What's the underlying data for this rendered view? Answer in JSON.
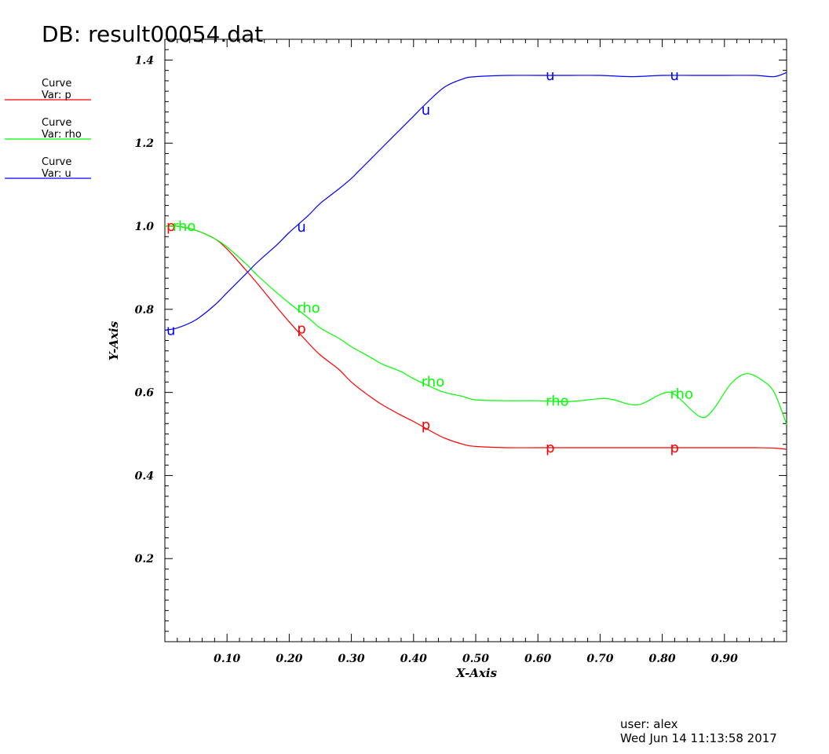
{
  "header": {
    "db_title": "DB: result00054.dat"
  },
  "footer": {
    "user": "user: alex",
    "timestamp": "Wed Jun 14 11:13:58 2017"
  },
  "legend": [
    {
      "line1": "Curve",
      "line2": "Var: p",
      "color": "#ff0000"
    },
    {
      "line1": "Curve",
      "line2": "Var: rho",
      "color": "#00ff00"
    },
    {
      "line1": "Curve",
      "line2": "Var: u",
      "color": "#0000ff"
    }
  ],
  "chart_data": {
    "type": "line",
    "title": "",
    "xlabel": "X-Axis",
    "ylabel": "Y-Axis",
    "xlim": [
      0.0,
      1.0
    ],
    "ylim": [
      0.0,
      1.45
    ],
    "x_ticks": [
      0.1,
      0.2,
      0.3,
      0.4,
      0.5,
      0.6,
      0.7,
      0.8,
      0.9
    ],
    "x_tick_labels": [
      "0.10",
      "0.20",
      "0.30",
      "0.40",
      "0.50",
      "0.60",
      "0.70",
      "0.80",
      "0.90"
    ],
    "y_ticks": [
      0.2,
      0.4,
      0.6,
      0.8,
      1.0,
      1.2,
      1.4
    ],
    "y_tick_labels": [
      "0.2",
      "0.4",
      "0.6",
      "0.8",
      "1.0",
      "1.2",
      "1.4"
    ],
    "grid": false,
    "legend_position": "top-left outside",
    "series": [
      {
        "name": "p",
        "label": "p",
        "color": "#ff0000",
        "x": [
          0.0,
          0.02,
          0.05,
          0.08,
          0.1,
          0.13,
          0.15,
          0.18,
          0.2,
          0.23,
          0.25,
          0.28,
          0.3,
          0.33,
          0.35,
          0.38,
          0.4,
          0.43,
          0.45,
          0.48,
          0.5,
          0.55,
          0.6,
          0.65,
          0.7,
          0.75,
          0.8,
          0.85,
          0.9,
          0.95,
          0.98,
          1.0
        ],
        "y": [
          1.0,
          1.0,
          0.99,
          0.97,
          0.945,
          0.895,
          0.86,
          0.805,
          0.77,
          0.72,
          0.69,
          0.655,
          0.625,
          0.59,
          0.57,
          0.545,
          0.53,
          0.505,
          0.49,
          0.475,
          0.47,
          0.467,
          0.467,
          0.467,
          0.467,
          0.467,
          0.467,
          0.467,
          0.467,
          0.467,
          0.466,
          0.463
        ],
        "label_x": [
          0.0,
          0.21,
          0.41,
          0.61,
          0.81
        ]
      },
      {
        "name": "rho",
        "label": "rho",
        "color": "#00ff00",
        "x": [
          0.0,
          0.02,
          0.05,
          0.08,
          0.1,
          0.13,
          0.15,
          0.18,
          0.2,
          0.23,
          0.25,
          0.28,
          0.3,
          0.33,
          0.35,
          0.38,
          0.4,
          0.43,
          0.45,
          0.48,
          0.5,
          0.55,
          0.6,
          0.65,
          0.7,
          0.72,
          0.76,
          0.8,
          0.82,
          0.86,
          0.88,
          0.91,
          0.935,
          0.96,
          0.98,
          1.0
        ],
        "y": [
          1.0,
          1.0,
          0.99,
          0.97,
          0.95,
          0.91,
          0.88,
          0.84,
          0.815,
          0.78,
          0.755,
          0.73,
          0.71,
          0.685,
          0.668,
          0.65,
          0.633,
          0.612,
          0.6,
          0.59,
          0.582,
          0.58,
          0.58,
          0.578,
          0.585,
          0.583,
          0.57,
          0.597,
          0.595,
          0.542,
          0.555,
          0.62,
          0.645,
          0.63,
          0.6,
          0.523
        ],
        "label_x": [
          0.01,
          0.21,
          0.41,
          0.61,
          0.81
        ]
      },
      {
        "name": "u",
        "label": "u",
        "color": "#0000ff",
        "x": [
          0.0,
          0.02,
          0.05,
          0.08,
          0.1,
          0.13,
          0.15,
          0.18,
          0.2,
          0.23,
          0.25,
          0.28,
          0.3,
          0.31,
          0.33,
          0.35,
          0.38,
          0.4,
          0.42,
          0.45,
          0.48,
          0.5,
          0.55,
          0.6,
          0.65,
          0.7,
          0.75,
          0.8,
          0.85,
          0.9,
          0.95,
          0.98,
          1.0
        ],
        "y": [
          0.75,
          0.755,
          0.775,
          0.81,
          0.84,
          0.885,
          0.915,
          0.955,
          0.985,
          1.025,
          1.055,
          1.09,
          1.115,
          1.13,
          1.16,
          1.19,
          1.235,
          1.265,
          1.295,
          1.335,
          1.355,
          1.36,
          1.363,
          1.363,
          1.363,
          1.363,
          1.36,
          1.363,
          1.363,
          1.363,
          1.363,
          1.36,
          1.37
        ],
        "label_x": [
          0.0,
          0.21,
          0.41,
          0.61,
          0.81
        ]
      }
    ]
  }
}
